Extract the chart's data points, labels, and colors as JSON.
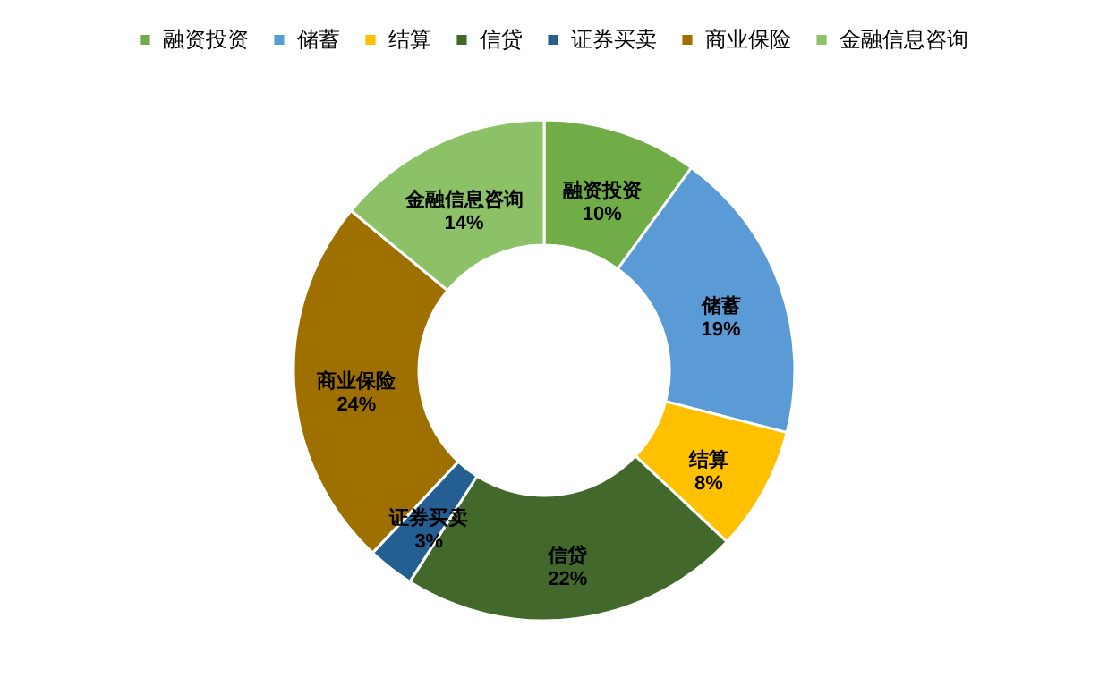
{
  "chart_data": {
    "type": "donut",
    "categories": [
      "融资投资",
      "储蓄",
      "结算",
      "信贷",
      "证券买卖",
      "商业保险",
      "金融信息咨询"
    ],
    "values": [
      10,
      19,
      8,
      22,
      3,
      24,
      14
    ],
    "value_labels": [
      "10%",
      "19%",
      "8%",
      "22%",
      "3%",
      "24%",
      "14%"
    ],
    "colors": [
      "#70ad47",
      "#5b9bd5",
      "#ffc000",
      "#43682b",
      "#255e91",
      "#9e7000",
      "#8cc168"
    ],
    "legend": "top"
  }
}
